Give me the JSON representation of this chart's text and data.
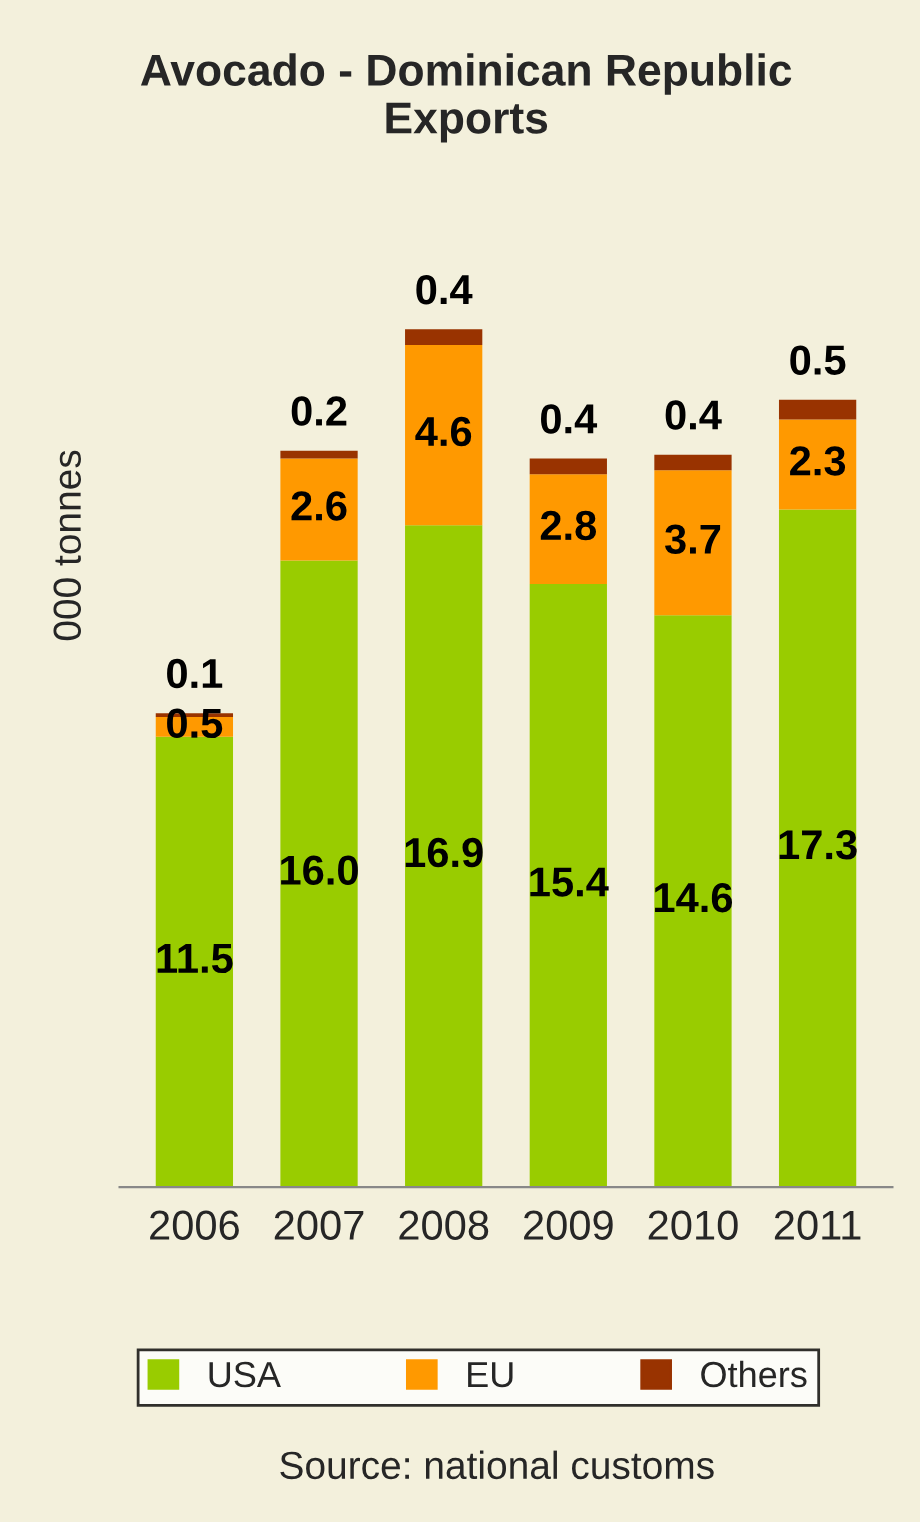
{
  "chart_data": {
    "type": "bar",
    "title": "Avocado - Dominican Republic Exports",
    "ylabel": "000 tonnes",
    "categories": [
      "2006",
      "2007",
      "2008",
      "2009",
      "2010",
      "2011"
    ],
    "stacked": true,
    "legend": "bottom",
    "grid": false,
    "series": [
      {
        "name": "USA",
        "color": "#99cc00",
        "values": [
          11.5,
          16.0,
          16.9,
          15.4,
          14.6,
          17.3
        ],
        "value_labels": [
          "11.5",
          "16.0",
          "16.9",
          "15.4",
          "14.6",
          "17.3"
        ]
      },
      {
        "name": "EU",
        "color": "#ff9900",
        "values": [
          0.5,
          2.6,
          4.6,
          2.8,
          3.7,
          2.3
        ],
        "value_labels": [
          "0.5",
          "2.6",
          "4.6",
          "2.8",
          "3.7",
          "2.3"
        ]
      },
      {
        "name": "Others",
        "color": "#993300",
        "values": [
          0.1,
          0.2,
          0.4,
          0.4,
          0.4,
          0.5
        ],
        "value_labels": [
          "0.1",
          "0.2",
          "0.4",
          "0.4",
          "0.4",
          "0.5"
        ]
      }
    ],
    "annotations": [
      "Source: national customs"
    ]
  }
}
